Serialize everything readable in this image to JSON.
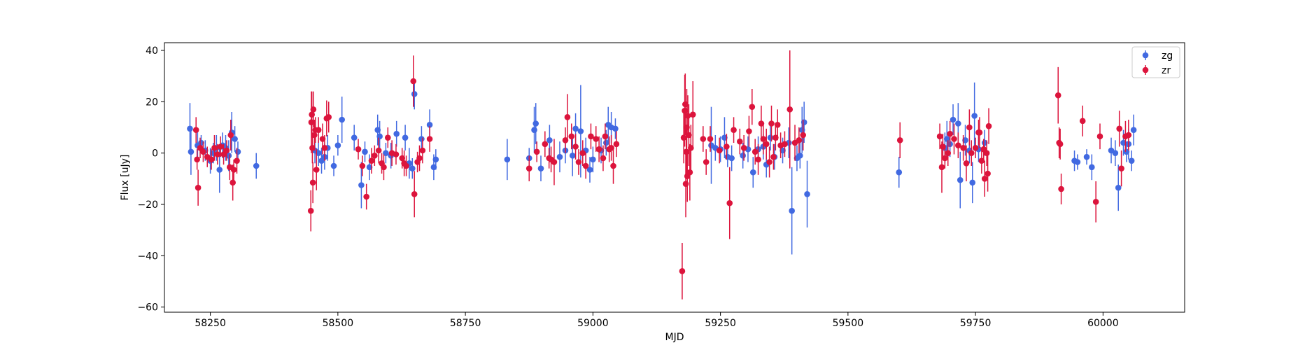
{
  "chart_data": {
    "type": "scatter",
    "title": "",
    "xlabel": "MJD",
    "ylabel": "Flux [uJy]",
    "xlim": [
      58160,
      60160
    ],
    "ylim": [
      -62,
      43
    ],
    "xticks": [
      58250,
      58500,
      58750,
      59000,
      59250,
      59500,
      59750,
      60000
    ],
    "yticks": [
      -60,
      -40,
      -20,
      0,
      20,
      40
    ],
    "grid": false,
    "legend": "top-right",
    "series": [
      {
        "name": "zg",
        "color": "#4169e1",
        "points": [
          [
            58210,
            9.5,
            10
          ],
          [
            58212,
            0.5,
            9
          ],
          [
            58225,
            3,
            5
          ],
          [
            58232,
            4,
            3
          ],
          [
            58240,
            1,
            4
          ],
          [
            58250,
            -3,
            5
          ],
          [
            58256,
            0,
            4
          ],
          [
            58262,
            2,
            5
          ],
          [
            58268,
            -6.5,
            9
          ],
          [
            58274,
            3,
            5
          ],
          [
            58280,
            2,
            5
          ],
          [
            58286,
            -1,
            6
          ],
          [
            58292,
            8,
            8
          ],
          [
            58298,
            5.5,
            5
          ],
          [
            58304,
            0.5,
            4
          ],
          [
            58340,
            -5,
            5
          ],
          [
            58455,
            1,
            5
          ],
          [
            58462,
            0,
            5
          ],
          [
            58468,
            -3,
            5
          ],
          [
            58474,
            -1.5,
            5
          ],
          [
            58480,
            2,
            5
          ],
          [
            58492,
            -5,
            4
          ],
          [
            58500,
            3,
            4
          ],
          [
            58508,
            13,
            9
          ],
          [
            58532,
            6,
            5
          ],
          [
            58546,
            -12.5,
            9
          ],
          [
            58553,
            0.5,
            4
          ],
          [
            58562,
            -5.5,
            5
          ],
          [
            58578,
            9,
            6
          ],
          [
            58582,
            6.5,
            6
          ],
          [
            58594,
            0,
            4
          ],
          [
            58604,
            -1,
            5
          ],
          [
            58615,
            7.5,
            5
          ],
          [
            58632,
            6,
            5
          ],
          [
            58640,
            -4,
            6
          ],
          [
            58646,
            -6,
            4
          ],
          [
            58650,
            23,
            6
          ],
          [
            58664,
            5.5,
            5
          ],
          [
            58680,
            11,
            6
          ],
          [
            58688,
            -5.5,
            5
          ],
          [
            58692,
            -2.5,
            4
          ],
          [
            58832,
            -2.5,
            8
          ],
          [
            58875,
            -2,
            4
          ],
          [
            58885,
            9,
            9
          ],
          [
            58888,
            11.5,
            8
          ],
          [
            58898,
            -6,
            5
          ],
          [
            58915,
            5,
            6
          ],
          [
            58935,
            -1.5,
            6
          ],
          [
            58946,
            1,
            5
          ],
          [
            58960,
            -1,
            8
          ],
          [
            58966,
            9.5,
            6
          ],
          [
            58976,
            8.5,
            18
          ],
          [
            58986,
            1,
            5
          ],
          [
            58994,
            -6.5,
            5
          ],
          [
            59000,
            -2.5,
            5
          ],
          [
            59016,
            1,
            5
          ],
          [
            59026,
            4,
            5
          ],
          [
            59030,
            11,
            7
          ],
          [
            59036,
            10,
            6
          ],
          [
            59044,
            9.5,
            4
          ],
          [
            59232,
            3,
            15
          ],
          [
            59240,
            2,
            5
          ],
          [
            59250,
            1.5,
            5
          ],
          [
            59258,
            6,
            8
          ],
          [
            59264,
            -1.5,
            4
          ],
          [
            59272,
            -2,
            5
          ],
          [
            59294,
            -1,
            5
          ],
          [
            59304,
            1.5,
            5
          ],
          [
            59314,
            -7.5,
            6
          ],
          [
            59324,
            1.5,
            5
          ],
          [
            59334,
            2.5,
            5
          ],
          [
            59340,
            -4.5,
            5
          ],
          [
            59348,
            6,
            5
          ],
          [
            59356,
            -1.5,
            5
          ],
          [
            59372,
            1,
            5
          ],
          [
            59384,
            4,
            6
          ],
          [
            59390,
            -22.5,
            17
          ],
          [
            59400,
            -2,
            5
          ],
          [
            59406,
            -1,
            5
          ],
          [
            59410,
            9,
            9
          ],
          [
            59414,
            12,
            8
          ],
          [
            59420,
            -16,
            13
          ],
          [
            59600,
            -7.5,
            6
          ],
          [
            59690,
            2,
            6
          ],
          [
            59694,
            5.5,
            7
          ],
          [
            59700,
            3.5,
            5
          ],
          [
            59706,
            13,
            6
          ],
          [
            59716,
            11.5,
            8
          ],
          [
            59720,
            -10.5,
            11
          ],
          [
            59730,
            5,
            6
          ],
          [
            59738,
            1,
            5
          ],
          [
            59744,
            -11.5,
            8
          ],
          [
            59748,
            14.5,
            13
          ],
          [
            59756,
            1.5,
            5
          ],
          [
            59768,
            4,
            5
          ],
          [
            59944,
            -3,
            4
          ],
          [
            59950,
            -3.5,
            3
          ],
          [
            59968,
            -1.5,
            3
          ],
          [
            59978,
            -5.5,
            5
          ],
          [
            60016,
            1,
            5
          ],
          [
            60024,
            0,
            5
          ],
          [
            60030,
            -13.5,
            9
          ],
          [
            60040,
            4,
            5
          ],
          [
            60046,
            0.5,
            4
          ],
          [
            60050,
            3.5,
            6
          ],
          [
            60056,
            -3,
            4
          ],
          [
            60060,
            9,
            6
          ]
        ]
      },
      {
        "name": "zr",
        "color": "#dc143c",
        "points": [
          [
            58222,
            9,
            5
          ],
          [
            58224,
            -2.5,
            4
          ],
          [
            58226,
            -13.5,
            7
          ],
          [
            58230,
            2,
            4
          ],
          [
            58236,
            0.5,
            4
          ],
          [
            58244,
            -1.5,
            4
          ],
          [
            58252,
            -2.5,
            4
          ],
          [
            58258,
            2,
            5
          ],
          [
            58264,
            -0.5,
            4
          ],
          [
            58270,
            2.5,
            4
          ],
          [
            58276,
            -0.5,
            4
          ],
          [
            58282,
            1,
            4
          ],
          [
            58288,
            -5.5,
            5
          ],
          [
            58290,
            7,
            6
          ],
          [
            58294,
            -11.5,
            7
          ],
          [
            58296,
            -6.5,
            4
          ],
          [
            58302,
            -3,
            5
          ],
          [
            58447,
            -22.5,
            8
          ],
          [
            58448,
            12,
            12
          ],
          [
            58449,
            15,
            9
          ],
          [
            58450,
            2,
            6
          ],
          [
            58451,
            -11.5,
            8
          ],
          [
            58452,
            17,
            7
          ],
          [
            58454,
            7,
            6
          ],
          [
            58456,
            9,
            5
          ],
          [
            58458,
            -6.5,
            8
          ],
          [
            58462,
            9,
            5
          ],
          [
            58470,
            5.5,
            6
          ],
          [
            58474,
            2,
            5
          ],
          [
            58478,
            13.5,
            7
          ],
          [
            58482,
            14,
            6
          ],
          [
            58540,
            1.5,
            4
          ],
          [
            58548,
            -5,
            4
          ],
          [
            58556,
            -17,
            5
          ],
          [
            58566,
            -3,
            5
          ],
          [
            58572,
            -1,
            4
          ],
          [
            58580,
            1,
            5
          ],
          [
            58586,
            -4,
            4
          ],
          [
            58590,
            -5.5,
            5
          ],
          [
            58598,
            6,
            4
          ],
          [
            58606,
            0,
            5
          ],
          [
            58614,
            -0.5,
            4
          ],
          [
            58626,
            -2,
            4
          ],
          [
            58630,
            -4,
            5
          ],
          [
            58634,
            -5,
            4
          ],
          [
            58648,
            28,
            10
          ],
          [
            58650,
            -16,
            9
          ],
          [
            58656,
            -3.5,
            4
          ],
          [
            58660,
            -2,
            5
          ],
          [
            58666,
            1,
            5
          ],
          [
            58680,
            5.5,
            5
          ],
          [
            58875,
            -6,
            5
          ],
          [
            58890,
            0.5,
            4
          ],
          [
            58906,
            3.5,
            5
          ],
          [
            58914,
            -2,
            4
          ],
          [
            58918,
            -2.5,
            5
          ],
          [
            58924,
            -3.5,
            9
          ],
          [
            58946,
            5,
            5
          ],
          [
            58950,
            14,
            9
          ],
          [
            58958,
            6.5,
            5
          ],
          [
            58966,
            2.5,
            5
          ],
          [
            58972,
            -3.5,
            5
          ],
          [
            58980,
            0,
            5
          ],
          [
            58986,
            -5,
            5
          ],
          [
            58996,
            6.5,
            5
          ],
          [
            59006,
            5.5,
            5
          ],
          [
            59012,
            1.5,
            5
          ],
          [
            59020,
            -2,
            5
          ],
          [
            59024,
            6.5,
            5
          ],
          [
            59032,
            1.5,
            5
          ],
          [
            59036,
            2,
            5
          ],
          [
            59040,
            -5,
            7
          ],
          [
            59046,
            3.5,
            5
          ],
          [
            59175,
            -46,
            11
          ],
          [
            59178,
            6,
            10
          ],
          [
            59180,
            16.5,
            14
          ],
          [
            59181,
            19,
            12
          ],
          [
            59182,
            -12,
            13
          ],
          [
            59183,
            0.5,
            10
          ],
          [
            59184,
            10,
            15
          ],
          [
            59185,
            -9,
            10
          ],
          [
            59186,
            14.5,
            8
          ],
          [
            59188,
            7,
            12
          ],
          [
            59190,
            -7.5,
            11
          ],
          [
            59192,
            2,
            9
          ],
          [
            59196,
            15,
            13
          ],
          [
            59216,
            5.5,
            5
          ],
          [
            59222,
            -3.5,
            5
          ],
          [
            59230,
            5.5,
            5
          ],
          [
            59248,
            1,
            5
          ],
          [
            59262,
            2.5,
            5
          ],
          [
            59268,
            -19.5,
            14
          ],
          [
            59276,
            9,
            5
          ],
          [
            59288,
            4.5,
            5
          ],
          [
            59296,
            2,
            5
          ],
          [
            59306,
            8.5,
            6
          ],
          [
            59312,
            18,
            7
          ],
          [
            59318,
            0.5,
            5
          ],
          [
            59324,
            -2.5,
            6
          ],
          [
            59330,
            11.5,
            7
          ],
          [
            59334,
            5.5,
            6
          ],
          [
            59340,
            3.5,
            6
          ],
          [
            59346,
            -3.5,
            6
          ],
          [
            59350,
            11.5,
            7
          ],
          [
            59354,
            -1.5,
            5
          ],
          [
            59358,
            6,
            5
          ],
          [
            59362,
            11,
            6
          ],
          [
            59368,
            3,
            5
          ],
          [
            59376,
            3.5,
            5
          ],
          [
            59386,
            17,
            23
          ],
          [
            59396,
            4,
            7
          ],
          [
            59404,
            5,
            5
          ],
          [
            59412,
            7,
            6
          ],
          [
            59602,
            5,
            7
          ],
          [
            59680,
            6.5,
            5
          ],
          [
            59684,
            -5.5,
            10
          ],
          [
            59686,
            2.5,
            5
          ],
          [
            59690,
            -2,
            4
          ],
          [
            59696,
            0,
            5
          ],
          [
            59700,
            7.5,
            5
          ],
          [
            59708,
            5.5,
            6
          ],
          [
            59716,
            3,
            5
          ],
          [
            59726,
            2,
            5
          ],
          [
            59732,
            -4,
            7
          ],
          [
            59738,
            10,
            7
          ],
          [
            59742,
            0,
            5
          ],
          [
            59750,
            2,
            4
          ],
          [
            59756,
            8,
            5
          ],
          [
            59758,
            8,
            6
          ],
          [
            59762,
            -3,
            5
          ],
          [
            59766,
            1.5,
            4
          ],
          [
            59768,
            -10,
            7
          ],
          [
            59772,
            0,
            5
          ],
          [
            59774,
            -8,
            7
          ],
          [
            59776,
            10.5,
            7
          ],
          [
            59912,
            22.5,
            11
          ],
          [
            59914,
            4,
            6
          ],
          [
            59916,
            3.5,
            6
          ],
          [
            59918,
            -14,
            6
          ],
          [
            59960,
            12.5,
            6
          ],
          [
            59986,
            -19,
            8
          ],
          [
            59994,
            6.5,
            5
          ],
          [
            60032,
            9.5,
            7
          ],
          [
            60036,
            -6,
            7
          ],
          [
            60044,
            6.5,
            6
          ],
          [
            60050,
            7,
            6
          ]
        ]
      }
    ]
  }
}
